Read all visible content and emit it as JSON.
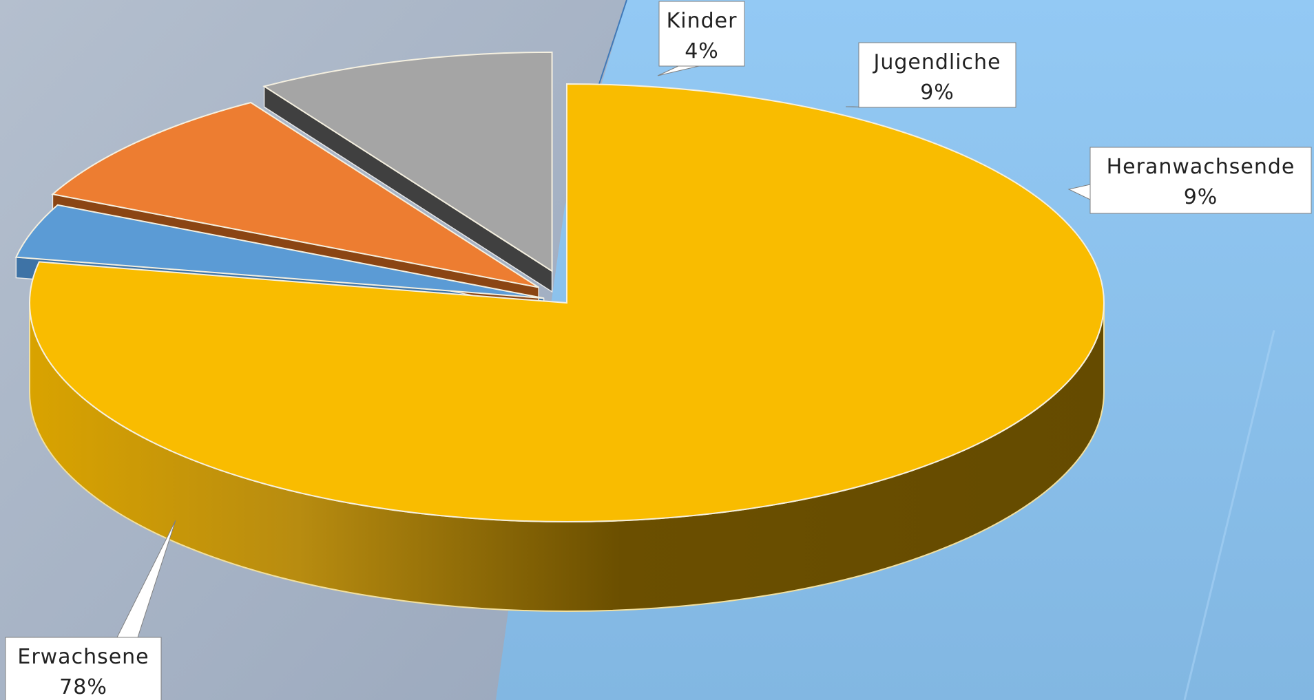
{
  "chart_data": {
    "type": "pie",
    "title": "",
    "style": "3d-exploded",
    "slices": [
      {
        "name": "Erwachsene",
        "value": 78,
        "label": "78%",
        "color": "#F9BC00"
      },
      {
        "name": "Kinder",
        "value": 4,
        "label": "4%",
        "color": "#5B9BD5"
      },
      {
        "name": "Jugendliche",
        "value": 9,
        "label": "9%",
        "color": "#ED7D31"
      },
      {
        "name": "Heranwachsende",
        "value": 9,
        "label": "9%",
        "color": "#A5A5A5"
      }
    ]
  },
  "background": {
    "left": "#A9B6C9",
    "right": "#88BEEA"
  }
}
